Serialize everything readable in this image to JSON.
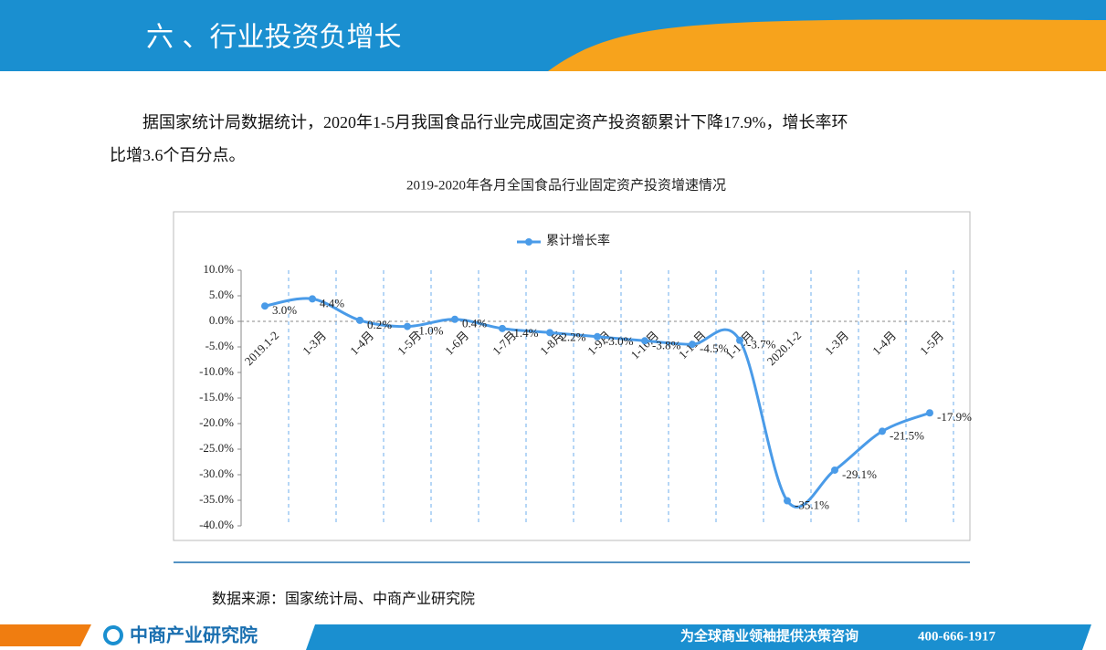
{
  "header": {
    "title": "六 、行业投资负增长"
  },
  "intro": "据国家统计局数据统计，2020年1-5月我国食品行业完成固定资产投资额累计下降17.9%，增长率环比增3.6个百分点。",
  "chart_data": {
    "type": "line",
    "title": "2019-2020年各月全国食品行业固定资产投资增速情况",
    "categories": [
      "2019.1-2",
      "1-3月",
      "1-4月",
      "1-5月",
      "1-6月",
      "1-7月",
      "1-8月",
      "1-9月",
      "1-10月",
      "1-11月",
      "1-12月",
      "2020.1-2",
      "1-3月",
      "1-4月",
      "1-5月"
    ],
    "series": [
      {
        "name": "累计增长率",
        "color": "#4a9be8",
        "values": [
          3.0,
          4.4,
          0.2,
          -1.0,
          0.4,
          -1.4,
          -2.2,
          -3.0,
          -3.8,
          -4.5,
          -3.7,
          -35.1,
          -29.1,
          -21.5,
          -17.9
        ],
        "value_labels": [
          "3.0%",
          "4.4%",
          "0.2%",
          "-1.0%",
          "0.4%",
          "-1.4%",
          "-2.2%",
          "-3.0%",
          "-3.8%",
          "-4.5%",
          "-3.7%",
          "-35.1%",
          "-29.1%",
          "-21.5%",
          "-17.9%"
        ]
      }
    ],
    "ylim": [
      -40,
      10
    ],
    "yticks": [
      {
        "value": 10,
        "label": "10.0%"
      },
      {
        "value": 5,
        "label": "5.0%"
      },
      {
        "value": 0,
        "label": "0.0%"
      },
      {
        "value": -5,
        "label": "-5.0%"
      },
      {
        "value": -10,
        "label": "-10.0%"
      },
      {
        "value": -15,
        "label": "-15.0%"
      },
      {
        "value": -20,
        "label": "-20.0%"
      },
      {
        "value": -25,
        "label": "-25.0%"
      },
      {
        "value": -30,
        "label": "-30.0%"
      },
      {
        "value": -35,
        "label": "-35.0%"
      },
      {
        "value": -40,
        "label": "-40.0%"
      }
    ],
    "legend": "top"
  },
  "source": "数据来源：国家统计局、中商产业研究院",
  "footer": {
    "brand": "中商产业研究院",
    "slogan": "为全球商业领袖提供决策咨询",
    "phone": "400-666-1917"
  }
}
